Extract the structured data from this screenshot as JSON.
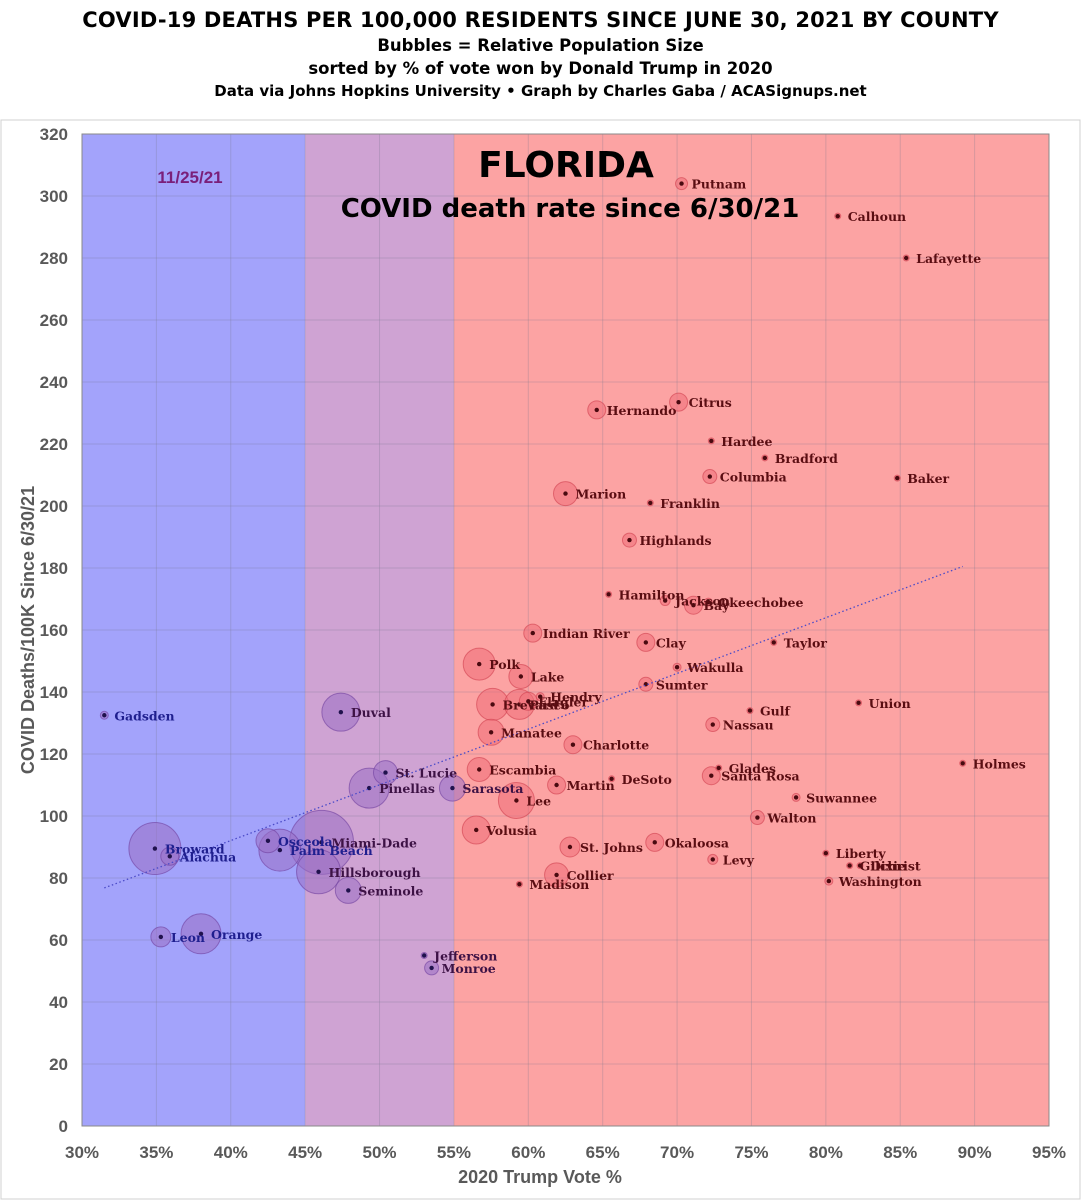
{
  "header": {
    "title": "COVID-19 DEATHS PER 100,000 RESIDENTS SINCE JUNE 30, 2021 BY COUNTY",
    "line2": "Bubbles = Relative Population Size",
    "line3": "sorted by % of vote won by Donald Trump in 2020",
    "line4": "Data via Johns Hopkins University • Graph by Charles Gaba / ACASignups.net"
  },
  "annotations": {
    "state": "FLORIDA",
    "subtitle": "COVID death rate since 6/30/21",
    "date": "11/25/21"
  },
  "colors": {
    "blue_zone": "#a3a3fb",
    "purple_zone": "#cfa3d3",
    "red_zone": "#fca3a3",
    "blue_bubble": "#9b6fc4",
    "red_bubble": "#ee6e78",
    "blue_label": "#1f1f8f",
    "purple_label": "#3d1245",
    "red_label": "#5a0d12",
    "trend": "#4b4bc8"
  },
  "chart_data": {
    "type": "scatter",
    "xlabel": "2020 Trump Vote %",
    "ylabel": "COVID Deaths/100K Since 6/30/21",
    "xlim": [
      30,
      95
    ],
    "ylim": [
      0,
      320
    ],
    "x_ticks": [
      "30%",
      "35%",
      "40%",
      "45%",
      "50%",
      "55%",
      "60%",
      "65%",
      "70%",
      "75%",
      "80%",
      "85%",
      "90%",
      "95%"
    ],
    "y_ticks": [
      "0",
      "20",
      "40",
      "60",
      "80",
      "100",
      "120",
      "140",
      "160",
      "180",
      "200",
      "220",
      "240",
      "260",
      "280",
      "300",
      "320"
    ],
    "grid": true,
    "zones": [
      {
        "from": 30,
        "to": 45,
        "color": "blue"
      },
      {
        "from": 45,
        "to": 55,
        "color": "purple"
      },
      {
        "from": 55,
        "to": 95,
        "color": "red"
      }
    ],
    "trendline": {
      "x": [
        31.5,
        89.2
      ],
      "y": [
        76.8,
        180.5
      ]
    },
    "points": [
      {
        "name": "Gadsden",
        "x": 31.5,
        "y": 132.5,
        "r": 4
      },
      {
        "name": "Broward",
        "x": 34.9,
        "y": 89.5,
        "r": 26
      },
      {
        "name": "Alachua",
        "x": 35.9,
        "y": 87.0,
        "r": 9
      },
      {
        "name": "Leon",
        "x": 35.3,
        "y": 61.0,
        "r": 10
      },
      {
        "name": "Orange",
        "x": 38.0,
        "y": 62.0,
        "r": 20
      },
      {
        "name": "Osceola",
        "x": 42.5,
        "y": 92.0,
        "r": 12
      },
      {
        "name": "Palm Beach",
        "x": 43.3,
        "y": 89.0,
        "r": 21
      },
      {
        "name": "Miami-Dade",
        "x": 46.1,
        "y": 91.5,
        "r": 32
      },
      {
        "name": "Hillsborough",
        "x": 45.9,
        "y": 82.0,
        "r": 22
      },
      {
        "name": "Seminole",
        "x": 47.9,
        "y": 76.0,
        "r": 13
      },
      {
        "name": "Duval",
        "x": 47.4,
        "y": 133.5,
        "r": 19
      },
      {
        "name": "St. Lucie",
        "x": 50.4,
        "y": 114.0,
        "r": 12
      },
      {
        "name": "Pinellas",
        "x": 49.3,
        "y": 109.0,
        "r": 20
      },
      {
        "name": "Sarasota",
        "x": 54.9,
        "y": 109.0,
        "r": 13
      },
      {
        "name": "Jefferson",
        "x": 53.0,
        "y": 55.0,
        "r": 3
      },
      {
        "name": "Monroe",
        "x": 53.5,
        "y": 51.0,
        "r": 7
      },
      {
        "name": "Volusia",
        "x": 56.5,
        "y": 95.5,
        "r": 14
      },
      {
        "name": "Escambia",
        "x": 56.7,
        "y": 115.0,
        "r": 12
      },
      {
        "name": "Polk",
        "x": 56.7,
        "y": 149.0,
        "r": 16
      },
      {
        "name": "Manatee",
        "x": 57.5,
        "y": 127.0,
        "r": 13
      },
      {
        "name": "Brevard",
        "x": 57.6,
        "y": 136.0,
        "r": 16
      },
      {
        "name": "Lake",
        "x": 59.5,
        "y": 145.0,
        "r": 12
      },
      {
        "name": "Pasco",
        "x": 59.4,
        "y": 136.0,
        "r": 15
      },
      {
        "name": "Hendry",
        "x": 60.8,
        "y": 138.5,
        "r": 4
      },
      {
        "name": "Flagler",
        "x": 60.0,
        "y": 137.0,
        "r": 9
      },
      {
        "name": "Lee",
        "x": 59.2,
        "y": 105.0,
        "r": 18
      },
      {
        "name": "Martin",
        "x": 61.9,
        "y": 110.0,
        "r": 9
      },
      {
        "name": "Collier",
        "x": 61.9,
        "y": 81.0,
        "r": 12
      },
      {
        "name": "Madison",
        "x": 59.4,
        "y": 78.0,
        "r": 3
      },
      {
        "name": "St. Johns",
        "x": 62.8,
        "y": 90.0,
        "r": 10
      },
      {
        "name": "Indian River",
        "x": 60.3,
        "y": 159.0,
        "r": 9
      },
      {
        "name": "Charlotte",
        "x": 63.0,
        "y": 123.0,
        "r": 9
      },
      {
        "name": "DeSoto",
        "x": 65.6,
        "y": 112.0,
        "r": 3
      },
      {
        "name": "Marion",
        "x": 62.5,
        "y": 204.0,
        "r": 12
      },
      {
        "name": "Hernando",
        "x": 64.6,
        "y": 231.0,
        "r": 9
      },
      {
        "name": "Hamilton",
        "x": 65.4,
        "y": 171.5,
        "r": 3
      },
      {
        "name": "Highlands",
        "x": 66.8,
        "y": 189.0,
        "r": 7
      },
      {
        "name": "Franklin",
        "x": 68.2,
        "y": 201.0,
        "r": 3
      },
      {
        "name": "Sumter",
        "x": 67.9,
        "y": 142.5,
        "r": 7
      },
      {
        "name": "Clay",
        "x": 67.9,
        "y": 156.0,
        "r": 9
      },
      {
        "name": "Jackson",
        "x": 69.2,
        "y": 169.5,
        "r": 5
      },
      {
        "name": "Bay",
        "x": 71.1,
        "y": 168.0,
        "r": 9
      },
      {
        "name": "Okeechobee",
        "x": 72.1,
        "y": 169.0,
        "r": 4
      },
      {
        "name": "Wakulla",
        "x": 70.0,
        "y": 148.0,
        "r": 4
      },
      {
        "name": "Okaloosa",
        "x": 68.5,
        "y": 91.5,
        "r": 9
      },
      {
        "name": "Citrus",
        "x": 70.1,
        "y": 233.5,
        "r": 9
      },
      {
        "name": "Putnam",
        "x": 70.3,
        "y": 304.0,
        "r": 6
      },
      {
        "name": "Hardee",
        "x": 72.3,
        "y": 221.0,
        "r": 3
      },
      {
        "name": "Columbia",
        "x": 72.2,
        "y": 209.5,
        "r": 7
      },
      {
        "name": "Nassau",
        "x": 72.4,
        "y": 129.5,
        "r": 7
      },
      {
        "name": "Glades",
        "x": 72.8,
        "y": 115.5,
        "r": 3
      },
      {
        "name": "Santa Rosa",
        "x": 72.3,
        "y": 113.0,
        "r": 9
      },
      {
        "name": "Levy",
        "x": 72.4,
        "y": 86.0,
        "r": 5
      },
      {
        "name": "Gulf",
        "x": 74.9,
        "y": 134.0,
        "r": 3
      },
      {
        "name": "Walton",
        "x": 75.4,
        "y": 99.5,
        "r": 7
      },
      {
        "name": "Taylor",
        "x": 76.5,
        "y": 156.0,
        "r": 3
      },
      {
        "name": "Bradford",
        "x": 75.9,
        "y": 215.5,
        "r": 3
      },
      {
        "name": "Suwannee",
        "x": 78.0,
        "y": 106.0,
        "r": 4
      },
      {
        "name": "Calhoun",
        "x": 80.8,
        "y": 293.5,
        "r": 3
      },
      {
        "name": "Liberty",
        "x": 80.0,
        "y": 88.0,
        "r": 3
      },
      {
        "name": "Washington",
        "x": 80.2,
        "y": 79.0,
        "r": 4
      },
      {
        "name": "Gilchrist",
        "x": 81.6,
        "y": 84.0,
        "r": 3
      },
      {
        "name": "Dixie",
        "x": 82.3,
        "y": 84.0,
        "r": 3
      },
      {
        "name": "Union",
        "x": 82.2,
        "y": 136.5,
        "r": 3
      },
      {
        "name": "Baker",
        "x": 84.8,
        "y": 209.0,
        "r": 3
      },
      {
        "name": "Lafayette",
        "x": 85.4,
        "y": 280.0,
        "r": 3
      },
      {
        "name": "Holmes",
        "x": 89.2,
        "y": 117.0,
        "r": 3
      }
    ]
  }
}
